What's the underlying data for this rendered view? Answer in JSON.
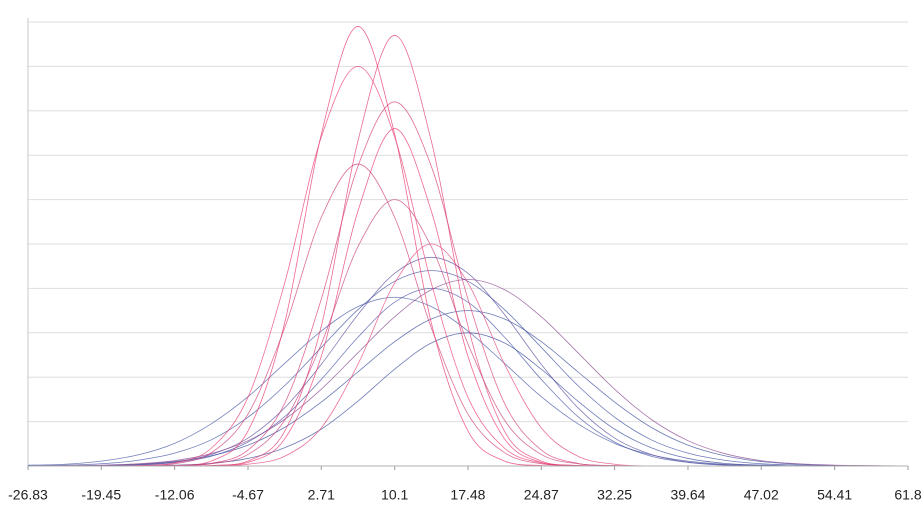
{
  "chart_data": {
    "type": "line",
    "x": [
      -26.83,
      -23.14,
      -19.45,
      -15.75,
      -12.06,
      -8.37,
      -4.67,
      -0.98,
      2.71,
      6.4,
      10.1,
      13.79,
      17.48,
      21.17,
      24.87,
      28.56,
      32.25,
      35.94,
      39.64,
      43.33,
      47.02,
      50.71,
      54.41,
      58.1,
      61.8
    ],
    "xlim": [
      -26.83,
      61.8
    ],
    "xticks": [
      -26.83,
      -19.45,
      -12.06,
      -4.67,
      2.71,
      10.1,
      17.48,
      24.87,
      32.25,
      39.64,
      47.02,
      54.41,
      61.8
    ],
    "ylim": [
      0,
      10
    ],
    "yticks": [
      0,
      1,
      2,
      3,
      4,
      5,
      6,
      7,
      8,
      9,
      10
    ],
    "grid": true,
    "series": [
      {
        "color": "#3d4fa0",
        "values": [
          0.01,
          0.02,
          0.05,
          0.13,
          0.29,
          0.59,
          1.1,
          1.81,
          2.67,
          3.52,
          4.16,
          4.4,
          4.16,
          3.52,
          2.67,
          1.81,
          1.1,
          0.59,
          0.29,
          0.13,
          0.05,
          0.02,
          0.01,
          0,
          0
        ]
      },
      {
        "color": "#4a55a8",
        "values": [
          0,
          0,
          0.01,
          0.02,
          0.08,
          0.22,
          0.54,
          1.11,
          1.95,
          2.9,
          3.69,
          4,
          3.69,
          2.9,
          1.95,
          1.11,
          0.54,
          0.22,
          0.08,
          0.02,
          0.01,
          0,
          0,
          0,
          0
        ]
      },
      {
        "color": "#3a4c9c",
        "values": [
          0,
          0,
          0.01,
          0.04,
          0.1,
          0.23,
          0.47,
          0.87,
          1.44,
          2.12,
          2.8,
          3.31,
          3.5,
          3.31,
          2.8,
          2.12,
          1.44,
          0.87,
          0.47,
          0.23,
          0.1,
          0.04,
          0.01,
          0,
          0
        ]
      },
      {
        "color": "#4558a6",
        "values": [
          0.02,
          0.04,
          0.11,
          0.25,
          0.51,
          0.95,
          1.56,
          2.31,
          3.04,
          3.59,
          3.8,
          3.59,
          3.04,
          2.31,
          1.56,
          0.95,
          0.51,
          0.25,
          0.11,
          0.04,
          0.02,
          0,
          0,
          0,
          0
        ]
      },
      {
        "color": "#5a4fa0",
        "values": [
          0,
          0,
          0.01,
          0.03,
          0.09,
          0.26,
          0.63,
          1.31,
          2.29,
          3.41,
          4.34,
          4.7,
          4.34,
          3.41,
          2.29,
          1.31,
          0.63,
          0.26,
          0.09,
          0.03,
          0.01,
          0,
          0,
          0,
          0
        ]
      },
      {
        "color": "#3d4fa0",
        "values": [
          0,
          0,
          0,
          0,
          0.02,
          0.06,
          0.17,
          0.41,
          0.83,
          1.46,
          2.18,
          2.77,
          3,
          2.77,
          2.18,
          1.46,
          0.83,
          0.41,
          0.17,
          0.06,
          0.02,
          0,
          0,
          0,
          0
        ]
      },
      {
        "color": "#8a4590",
        "values": [
          0,
          0.01,
          0.02,
          0.05,
          0.12,
          0.28,
          0.57,
          1.05,
          1.73,
          2.55,
          3.36,
          3.97,
          4.2,
          3.97,
          3.36,
          2.55,
          1.73,
          1.05,
          0.57,
          0.28,
          0.12,
          0.05,
          0.02,
          0.01,
          0
        ]
      },
      {
        "color": "#e8336b",
        "values": [
          0,
          0,
          0,
          0,
          0.01,
          0.11,
          0.79,
          3.22,
          7.47,
          9.9,
          7.47,
          3.22,
          0.79,
          0.11,
          0.01,
          0,
          0,
          0,
          0,
          0,
          0,
          0,
          0,
          0,
          0
        ]
      },
      {
        "color": "#e23a70",
        "values": [
          0,
          0,
          0,
          0,
          0,
          0.01,
          0.11,
          0.78,
          3.15,
          7.32,
          9.7,
          7.32,
          3.15,
          0.78,
          0.11,
          0.01,
          0,
          0,
          0,
          0,
          0,
          0,
          0,
          0,
          0
        ]
      },
      {
        "color": "#ea3c6e",
        "values": [
          0,
          0,
          0,
          0.01,
          0.07,
          0.4,
          1.55,
          4.12,
          7.41,
          9,
          7.41,
          4.12,
          1.55,
          0.4,
          0.07,
          0.01,
          0,
          0,
          0,
          0,
          0,
          0,
          0,
          0,
          0
        ]
      },
      {
        "color": "#d83a74",
        "values": [
          0,
          0,
          0,
          0,
          0.01,
          0.06,
          0.36,
          1.41,
          3.76,
          6.75,
          8.2,
          6.75,
          3.76,
          1.41,
          0.36,
          0.06,
          0.01,
          0,
          0,
          0,
          0,
          0,
          0,
          0,
          0
        ]
      },
      {
        "color": "#e8336b",
        "values": [
          0,
          0,
          0,
          0,
          0,
          0.01,
          0.08,
          0.61,
          2.47,
          5.74,
          7.6,
          5.74,
          2.47,
          0.61,
          0.08,
          0.01,
          0,
          0,
          0,
          0,
          0,
          0,
          0,
          0,
          0
        ]
      },
      {
        "color": "#cf3c7a",
        "values": [
          0,
          0,
          0,
          0.01,
          0.05,
          0.3,
          1.17,
          3.11,
          5.6,
          6.8,
          5.6,
          3.11,
          1.17,
          0.3,
          0.05,
          0.01,
          0,
          0,
          0,
          0,
          0,
          0,
          0,
          0,
          0
        ]
      },
      {
        "color": "#e4437a",
        "values": [
          0,
          0,
          0,
          0,
          0,
          0,
          0.04,
          0.22,
          0.86,
          2.29,
          4.12,
          5,
          4.12,
          2.29,
          0.86,
          0.22,
          0.04,
          0,
          0,
          0,
          0,
          0,
          0,
          0,
          0
        ]
      },
      {
        "color": "#c8407e",
        "values": [
          0,
          0,
          0,
          0,
          0.01,
          0.05,
          0.26,
          1.03,
          2.75,
          4.94,
          6,
          4.94,
          2.75,
          1.03,
          0.26,
          0.05,
          0.01,
          0,
          0,
          0,
          0,
          0,
          0,
          0,
          0
        ]
      }
    ]
  }
}
